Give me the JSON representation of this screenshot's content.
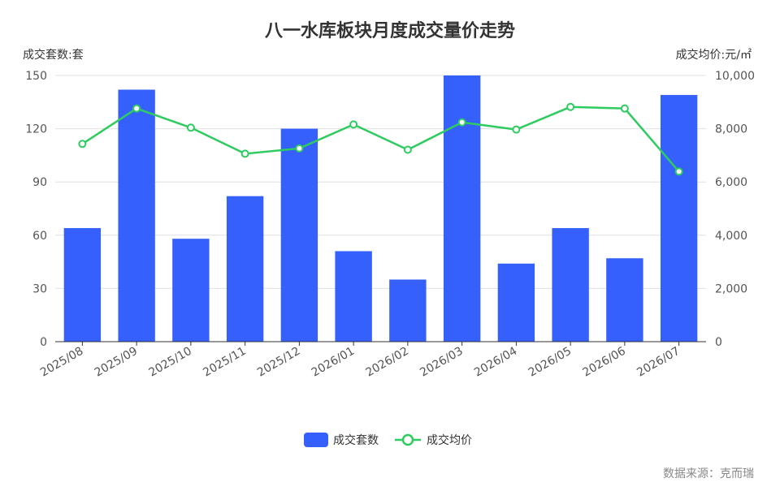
{
  "chart_data": {
    "type": "bar",
    "title": "八一水库板块月度成交量价走势",
    "y_left_label": "成交套数:套",
    "y_right_label": "成交均价:元/㎡",
    "categories": [
      "2025/08",
      "2025/09",
      "2025/10",
      "2025/11",
      "2025/12",
      "2026/01",
      "2026/02",
      "2026/03",
      "2026/04",
      "2026/05",
      "2026/06",
      "2026/07"
    ],
    "ylim_left": [
      0,
      150
    ],
    "ylim_right": [
      0,
      10000
    ],
    "y_left_ticks": [
      "0",
      "30",
      "60",
      "90",
      "120",
      "150"
    ],
    "y_right_ticks": [
      "0",
      "2,000",
      "4,000",
      "6,000",
      "8,000",
      "10,000"
    ],
    "series": [
      {
        "name": "成交套数",
        "type": "bar",
        "axis": "left",
        "color": "#3560fc",
        "values": [
          64,
          142,
          58,
          82,
          120,
          51,
          35,
          150,
          44,
          64,
          47,
          139
        ]
      },
      {
        "name": "成交均价",
        "type": "line",
        "axis": "right",
        "color": "#2ecc60",
        "values": [
          7430,
          8760,
          8040,
          7060,
          7260,
          8160,
          7210,
          8240,
          7970,
          8820,
          8760,
          6390
        ]
      }
    ],
    "grid": true,
    "legend": "bottom-center",
    "source": "数据来源：克而瑞"
  }
}
